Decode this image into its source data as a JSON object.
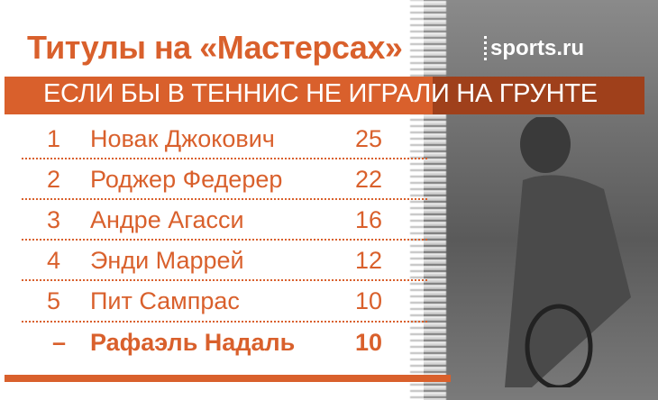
{
  "title": "Титулы на «Мастерсах»",
  "subtitle": "ЕСЛИ БЫ В ТЕННИС НЕ ИГРАЛИ НА ГРУНТЕ",
  "logo": "sports.ru",
  "colors": {
    "accent": "#d9602c",
    "banner_text": "#ffffff"
  },
  "rows": [
    {
      "rank": "1",
      "name": "Новак Джокович",
      "titles": "25"
    },
    {
      "rank": "2",
      "name": "Роджер Федерер",
      "titles": "22"
    },
    {
      "rank": "3",
      "name": "Андре Агасси",
      "titles": "16"
    },
    {
      "rank": "4",
      "name": "Энди Маррей",
      "titles": "12"
    },
    {
      "rank": "5",
      "name": "Пит Сампрас",
      "titles": "10"
    },
    {
      "rank": "–",
      "name": "Рафаэль Надаль",
      "titles": "10",
      "highlighted": true
    }
  ]
}
